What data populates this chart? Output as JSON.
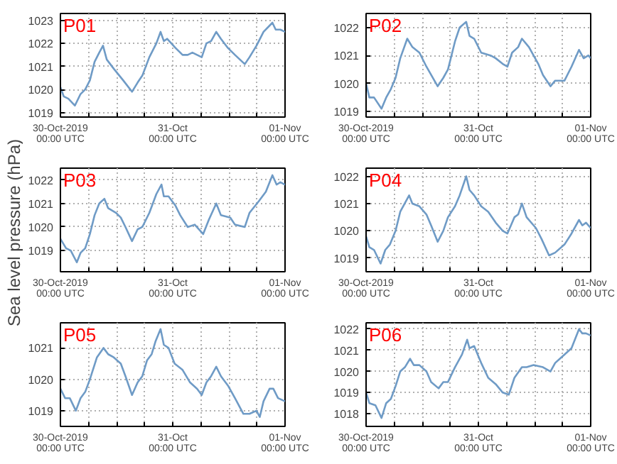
{
  "chart_data": [
    {
      "type": "line",
      "title": "P01",
      "color": "#6f9bc6",
      "grid": true,
      "xlim": [
        "2019-10-30T00:00",
        "2019-11-01T00:00"
      ],
      "ylim": [
        1018.8,
        1023.3
      ],
      "yticks": [
        1019,
        1020,
        1021,
        1022,
        1023
      ],
      "xticks": [
        {
          "value": "2019-10-30T00:00",
          "label": "30-Oct-2019\n00:00 UTC"
        },
        {
          "value": "2019-10-30T06:00",
          "label": null
        },
        {
          "value": "2019-10-30T12:00",
          "label": null
        },
        {
          "value": "2019-10-30T18:00",
          "label": null
        },
        {
          "value": "2019-10-31T00:00",
          "label": "31-Oct\n00:00 UTC"
        },
        {
          "value": "2019-10-31T06:00",
          "label": null
        },
        {
          "value": "2019-10-31T12:00",
          "label": null
        },
        {
          "value": "2019-10-31T18:00",
          "label": null
        },
        {
          "value": "2019-11-01T00:00",
          "label": "01-Nov\n00:00 UTC"
        }
      ],
      "x": [
        "2019-10-30T00:00",
        "2019-10-30T00:42",
        "2019-10-30T01:42",
        "2019-10-30T03:06",
        "2019-10-30T04:18",
        "2019-10-30T05:18",
        "2019-10-30T06:18",
        "2019-10-30T07:18",
        "2019-10-30T08:18",
        "2019-10-30T09:06",
        "2019-10-30T09:54",
        "2019-10-30T11:24",
        "2019-10-30T13:24",
        "2019-10-30T15:18",
        "2019-10-30T16:30",
        "2019-10-30T17:30",
        "2019-10-30T19:00",
        "2019-10-30T20:30",
        "2019-10-30T21:24",
        "2019-10-30T22:06",
        "2019-10-30T22:48",
        "2019-10-31T00:36",
        "2019-10-31T02:06",
        "2019-10-31T03:12",
        "2019-10-31T04:12",
        "2019-10-31T05:12",
        "2019-10-31T06:12",
        "2019-10-31T07:12",
        "2019-10-31T08:12",
        "2019-10-31T09:18",
        "2019-10-31T10:18",
        "2019-10-31T11:48",
        "2019-10-31T13:18",
        "2019-10-31T15:24",
        "2019-10-31T16:24",
        "2019-10-31T17:54",
        "2019-10-31T19:24",
        "2019-10-31T21:18",
        "2019-10-31T22:00",
        "2019-10-31T23:00",
        "2019-11-01T00:00"
      ],
      "values": [
        1020.1,
        1019.7,
        1019.6,
        1019.3,
        1019.8,
        1020.0,
        1020.4,
        1021.2,
        1021.6,
        1021.9,
        1021.3,
        1020.9,
        1020.4,
        1019.9,
        1020.3,
        1020.6,
        1021.4,
        1022.0,
        1022.5,
        1022.1,
        1022.2,
        1021.8,
        1021.5,
        1021.5,
        1021.6,
        1021.5,
        1021.4,
        1022.0,
        1022.1,
        1022.5,
        1022.2,
        1021.8,
        1021.5,
        1021.1,
        1021.4,
        1021.9,
        1022.5,
        1022.9,
        1022.6,
        1022.6,
        1022.5
      ]
    },
    {
      "type": "line",
      "title": "P02",
      "color": "#6f9bc6",
      "grid": true,
      "xlim": [
        "2019-10-30T00:00",
        "2019-11-01T00:00"
      ],
      "ylim": [
        1018.8,
        1022.5
      ],
      "yticks": [
        1019,
        1020,
        1021,
        1022
      ],
      "xticks": [
        {
          "value": "2019-10-30T00:00",
          "label": "30-Oct-2019\n00:00 UTC"
        },
        {
          "value": "2019-10-30T06:00",
          "label": null
        },
        {
          "value": "2019-10-30T12:00",
          "label": null
        },
        {
          "value": "2019-10-30T18:00",
          "label": null
        },
        {
          "value": "2019-10-31T00:00",
          "label": "31-Oct\n00:00 UTC"
        },
        {
          "value": "2019-10-31T06:00",
          "label": null
        },
        {
          "value": "2019-10-31T12:00",
          "label": null
        },
        {
          "value": "2019-10-31T18:00",
          "label": null
        },
        {
          "value": "2019-11-01T00:00",
          "label": "01-Nov\n00:00 UTC"
        }
      ],
      "x": [
        "2019-10-30T00:00",
        "2019-10-30T00:42",
        "2019-10-30T01:42",
        "2019-10-30T03:18",
        "2019-10-30T04:18",
        "2019-10-30T05:18",
        "2019-10-30T06:18",
        "2019-10-30T07:18",
        "2019-10-30T08:48",
        "2019-10-30T09:54",
        "2019-10-30T11:24",
        "2019-10-30T12:54",
        "2019-10-30T15:18",
        "2019-10-30T16:30",
        "2019-10-30T17:30",
        "2019-10-30T19:00",
        "2019-10-30T20:00",
        "2019-10-30T21:24",
        "2019-10-30T22:06",
        "2019-10-30T23:06",
        "2019-10-31T00:36",
        "2019-10-31T02:36",
        "2019-10-31T03:42",
        "2019-10-31T05:12",
        "2019-10-31T06:12",
        "2019-10-31T07:12",
        "2019-10-31T08:30",
        "2019-10-31T09:18",
        "2019-10-31T10:48",
        "2019-10-31T12:48",
        "2019-10-31T13:48",
        "2019-10-31T15:24",
        "2019-10-31T16:24",
        "2019-10-31T18:24",
        "2019-10-31T19:54",
        "2019-10-31T21:30",
        "2019-10-31T22:30",
        "2019-10-31T23:30",
        "2019-11-01T00:00"
      ],
      "values": [
        1020.0,
        1019.5,
        1019.5,
        1019.1,
        1019.5,
        1019.8,
        1020.2,
        1020.9,
        1021.6,
        1021.3,
        1021.1,
        1020.6,
        1019.9,
        1020.2,
        1020.5,
        1021.5,
        1022.0,
        1022.2,
        1021.7,
        1021.6,
        1021.1,
        1021.0,
        1020.9,
        1020.7,
        1020.6,
        1021.1,
        1021.3,
        1021.6,
        1021.3,
        1020.7,
        1020.3,
        1019.9,
        1020.1,
        1020.1,
        1020.6,
        1021.2,
        1020.9,
        1021.0,
        1020.9
      ]
    },
    {
      "type": "line",
      "title": "P03",
      "ylabel": "Sea level pressure (hPa)",
      "color": "#6f9bc6",
      "grid": true,
      "xlim": [
        "2019-10-30T00:00",
        "2019-11-01T00:00"
      ],
      "ylim": [
        1018.1,
        1022.5
      ],
      "yticks": [
        1019,
        1020,
        1021,
        1022
      ],
      "xticks": [
        {
          "value": "2019-10-30T00:00",
          "label": "30-Oct-2019\n00:00 UTC"
        },
        {
          "value": "2019-10-30T06:00",
          "label": null
        },
        {
          "value": "2019-10-30T12:00",
          "label": null
        },
        {
          "value": "2019-10-30T18:00",
          "label": null
        },
        {
          "value": "2019-10-31T00:00",
          "label": "31-Oct\n00:00 UTC"
        },
        {
          "value": "2019-10-31T06:00",
          "label": null
        },
        {
          "value": "2019-10-31T12:00",
          "label": null
        },
        {
          "value": "2019-10-31T18:00",
          "label": null
        },
        {
          "value": "2019-11-01T00:00",
          "label": "01-Nov\n00:00 UTC"
        }
      ],
      "x": [
        "2019-10-30T00:00",
        "2019-10-30T01:12",
        "2019-10-30T02:12",
        "2019-10-30T03:30",
        "2019-10-30T04:18",
        "2019-10-30T05:18",
        "2019-10-30T06:18",
        "2019-10-30T07:18",
        "2019-10-30T08:18",
        "2019-10-30T09:24",
        "2019-10-30T10:12",
        "2019-10-30T11:54",
        "2019-10-30T12:54",
        "2019-10-30T13:54",
        "2019-10-30T15:18",
        "2019-10-30T16:30",
        "2019-10-30T17:30",
        "2019-10-30T19:00",
        "2019-10-30T20:30",
        "2019-10-30T21:36",
        "2019-10-30T22:06",
        "2019-10-30T23:06",
        "2019-10-31T00:36",
        "2019-10-31T01:36",
        "2019-10-31T03:12",
        "2019-10-31T04:42",
        "2019-10-31T06:30",
        "2019-10-31T07:42",
        "2019-10-31T09:18",
        "2019-10-31T10:18",
        "2019-10-31T12:18",
        "2019-10-31T13:18",
        "2019-10-31T15:24",
        "2019-10-31T16:24",
        "2019-10-31T18:24",
        "2019-10-31T19:54",
        "2019-10-31T21:18",
        "2019-10-31T22:12",
        "2019-10-31T23:00",
        "2019-11-01T00:00"
      ],
      "values": [
        1019.5,
        1019.1,
        1019.0,
        1018.5,
        1018.9,
        1019.1,
        1019.7,
        1020.5,
        1021.0,
        1021.2,
        1020.8,
        1020.6,
        1020.4,
        1020.0,
        1019.4,
        1019.9,
        1020.0,
        1020.6,
        1021.4,
        1021.8,
        1021.3,
        1021.3,
        1020.9,
        1020.5,
        1020.0,
        1020.1,
        1019.7,
        1020.3,
        1021.0,
        1020.5,
        1020.4,
        1020.1,
        1020.0,
        1020.6,
        1021.1,
        1021.5,
        1022.2,
        1021.8,
        1021.9,
        1021.8
      ]
    },
    {
      "type": "line",
      "title": "P04",
      "color": "#6f9bc6",
      "grid": true,
      "xlim": [
        "2019-10-30T00:00",
        "2019-11-01T00:00"
      ],
      "ylim": [
        1018.5,
        1022.3
      ],
      "yticks": [
        1019,
        1020,
        1021,
        1022
      ],
      "xticks": [
        {
          "value": "2019-10-30T00:00",
          "label": "30-Oct-2019\n00:00 UTC"
        },
        {
          "value": "2019-10-30T06:00",
          "label": null
        },
        {
          "value": "2019-10-30T12:00",
          "label": null
        },
        {
          "value": "2019-10-30T18:00",
          "label": null
        },
        {
          "value": "2019-10-31T00:00",
          "label": "31-Oct\n00:00 UTC"
        },
        {
          "value": "2019-10-31T06:00",
          "label": null
        },
        {
          "value": "2019-10-31T12:00",
          "label": null
        },
        {
          "value": "2019-10-31T18:00",
          "label": null
        },
        {
          "value": "2019-11-01T00:00",
          "label": "01-Nov\n00:00 UTC"
        }
      ],
      "x": [
        "2019-10-30T00:00",
        "2019-10-30T00:42",
        "2019-10-30T01:42",
        "2019-10-30T03:06",
        "2019-10-30T04:06",
        "2019-10-30T05:06",
        "2019-10-30T06:18",
        "2019-10-30T07:18",
        "2019-10-30T09:12",
        "2019-10-30T09:54",
        "2019-10-30T11:24",
        "2019-10-30T12:54",
        "2019-10-30T13:54",
        "2019-10-30T15:18",
        "2019-10-30T16:30",
        "2019-10-30T17:30",
        "2019-10-30T19:00",
        "2019-10-30T20:00",
        "2019-10-30T21:24",
        "2019-10-30T22:06",
        "2019-10-30T23:06",
        "2019-10-31T00:36",
        "2019-10-31T02:06",
        "2019-10-31T03:42",
        "2019-10-31T05:12",
        "2019-10-31T06:12",
        "2019-10-31T07:42",
        "2019-10-31T08:30",
        "2019-10-31T09:18",
        "2019-10-31T10:18",
        "2019-10-31T12:18",
        "2019-10-31T13:30",
        "2019-10-31T15:06",
        "2019-10-31T16:24",
        "2019-10-31T18:24",
        "2019-10-31T19:54",
        "2019-10-31T21:30",
        "2019-10-31T22:12",
        "2019-10-31T23:00",
        "2019-11-01T00:00"
      ],
      "values": [
        1019.8,
        1019.4,
        1019.3,
        1018.8,
        1019.3,
        1019.5,
        1020.0,
        1020.7,
        1021.3,
        1021.0,
        1020.9,
        1020.6,
        1020.2,
        1019.6,
        1020.0,
        1020.5,
        1020.9,
        1021.3,
        1022.0,
        1021.5,
        1021.3,
        1020.9,
        1020.7,
        1020.3,
        1020.0,
        1019.9,
        1020.5,
        1020.6,
        1021.0,
        1020.5,
        1020.1,
        1019.7,
        1019.1,
        1019.2,
        1019.5,
        1019.9,
        1020.4,
        1020.2,
        1020.3,
        1020.1
      ]
    },
    {
      "type": "line",
      "title": "P05",
      "color": "#6f9bc6",
      "grid": true,
      "xlim": [
        "2019-10-30T00:00",
        "2019-11-01T00:00"
      ],
      "ylim": [
        1018.5,
        1021.8
      ],
      "yticks": [
        1019,
        1020,
        1021
      ],
      "xticks": [
        {
          "value": "2019-10-30T00:00",
          "label": "30-Oct-2019\n00:00 UTC"
        },
        {
          "value": "2019-10-30T06:00",
          "label": null
        },
        {
          "value": "2019-10-30T12:00",
          "label": null
        },
        {
          "value": "2019-10-30T18:00",
          "label": null
        },
        {
          "value": "2019-10-31T00:00",
          "label": "31-Oct\n00:00 UTC"
        },
        {
          "value": "2019-10-31T06:00",
          "label": null
        },
        {
          "value": "2019-10-31T12:00",
          "label": null
        },
        {
          "value": "2019-10-31T18:00",
          "label": null
        },
        {
          "value": "2019-11-01T00:00",
          "label": "01-Nov\n00:00 UTC"
        }
      ],
      "x": [
        "2019-10-30T00:00",
        "2019-10-30T01:00",
        "2019-10-30T02:00",
        "2019-10-30T03:18",
        "2019-10-30T04:18",
        "2019-10-30T05:18",
        "2019-10-30T06:18",
        "2019-10-30T07:48",
        "2019-10-30T09:12",
        "2019-10-30T10:12",
        "2019-10-30T11:24",
        "2019-10-30T12:54",
        "2019-10-30T13:54",
        "2019-10-30T15:18",
        "2019-10-30T16:30",
        "2019-10-30T17:30",
        "2019-10-30T18:30",
        "2019-10-30T19:30",
        "2019-10-30T20:18",
        "2019-10-30T21:24",
        "2019-10-30T22:06",
        "2019-10-30T23:06",
        "2019-10-31T00:24",
        "2019-10-31T02:06",
        "2019-10-31T03:42",
        "2019-10-31T05:12",
        "2019-10-31T06:12",
        "2019-10-31T07:12",
        "2019-10-31T08:12",
        "2019-10-31T09:18",
        "2019-10-31T10:18",
        "2019-10-31T11:48",
        "2019-10-31T13:18",
        "2019-10-31T15:06",
        "2019-10-31T16:24",
        "2019-10-31T17:54",
        "2019-10-31T18:36",
        "2019-10-31T19:24",
        "2019-10-31T20:42",
        "2019-10-31T21:30",
        "2019-10-31T22:30",
        "2019-11-01T00:00"
      ],
      "values": [
        1019.7,
        1019.4,
        1019.4,
        1019.0,
        1019.4,
        1019.6,
        1020.0,
        1020.7,
        1021.0,
        1020.8,
        1020.7,
        1020.5,
        1020.1,
        1019.5,
        1019.9,
        1020.1,
        1020.6,
        1020.8,
        1021.2,
        1021.6,
        1021.1,
        1021.0,
        1020.5,
        1020.3,
        1019.9,
        1019.7,
        1019.5,
        1019.9,
        1020.1,
        1020.4,
        1020.1,
        1019.8,
        1019.4,
        1018.9,
        1018.9,
        1019.0,
        1018.8,
        1019.3,
        1019.7,
        1019.7,
        1019.4,
        1019.3
      ]
    },
    {
      "type": "line",
      "title": "P06",
      "color": "#6f9bc6",
      "grid": true,
      "xlim": [
        "2019-10-30T00:00",
        "2019-11-01T00:00"
      ],
      "ylim": [
        1017.4,
        1022.3
      ],
      "yticks": [
        1018,
        1019,
        1020,
        1021,
        1022
      ],
      "xticks": [
        {
          "value": "2019-10-30T00:00",
          "label": "30-Oct-2019\n00:00 UTC"
        },
        {
          "value": "2019-10-30T06:00",
          "label": null
        },
        {
          "value": "2019-10-30T12:00",
          "label": null
        },
        {
          "value": "2019-10-30T18:00",
          "label": null
        },
        {
          "value": "2019-10-31T00:00",
          "label": "31-Oct\n00:00 UTC"
        },
        {
          "value": "2019-10-31T06:00",
          "label": null
        },
        {
          "value": "2019-10-31T12:00",
          "label": null
        },
        {
          "value": "2019-10-31T18:00",
          "label": null
        },
        {
          "value": "2019-11-01T00:00",
          "label": "01-Nov\n00:00 UTC"
        }
      ],
      "x": [
        "2019-10-30T00:00",
        "2019-10-30T00:42",
        "2019-10-30T02:00",
        "2019-10-30T03:18",
        "2019-10-30T04:18",
        "2019-10-30T05:18",
        "2019-10-30T06:18",
        "2019-10-30T07:18",
        "2019-10-30T08:18",
        "2019-10-30T09:24",
        "2019-10-30T10:12",
        "2019-10-30T11:24",
        "2019-10-30T12:54",
        "2019-10-30T13:54",
        "2019-10-30T15:30",
        "2019-10-30T16:30",
        "2019-10-30T17:30",
        "2019-10-30T19:00",
        "2019-10-30T20:30",
        "2019-10-30T21:36",
        "2019-10-30T22:06",
        "2019-10-30T23:06",
        "2019-10-31T00:36",
        "2019-10-31T02:06",
        "2019-10-31T03:42",
        "2019-10-31T05:12",
        "2019-10-31T06:30",
        "2019-10-31T07:42",
        "2019-10-31T09:18",
        "2019-10-31T10:18",
        "2019-10-31T11:48",
        "2019-10-31T13:48",
        "2019-10-31T15:24",
        "2019-10-31T16:24",
        "2019-10-31T18:24",
        "2019-10-31T19:54",
        "2019-10-31T21:30",
        "2019-10-31T22:12",
        "2019-10-31T23:00",
        "2019-11-01T00:00"
      ],
      "values": [
        1019.0,
        1018.5,
        1018.4,
        1017.8,
        1018.5,
        1018.7,
        1019.3,
        1020.0,
        1020.2,
        1020.6,
        1020.3,
        1020.3,
        1020.0,
        1019.5,
        1019.2,
        1019.5,
        1019.5,
        1020.2,
        1020.8,
        1021.5,
        1021.1,
        1021.2,
        1020.4,
        1019.7,
        1019.4,
        1019.0,
        1018.9,
        1019.7,
        1020.2,
        1020.2,
        1020.3,
        1020.2,
        1020.0,
        1020.4,
        1020.8,
        1021.1,
        1022.0,
        1021.8,
        1021.8,
        1021.7
      ]
    }
  ]
}
